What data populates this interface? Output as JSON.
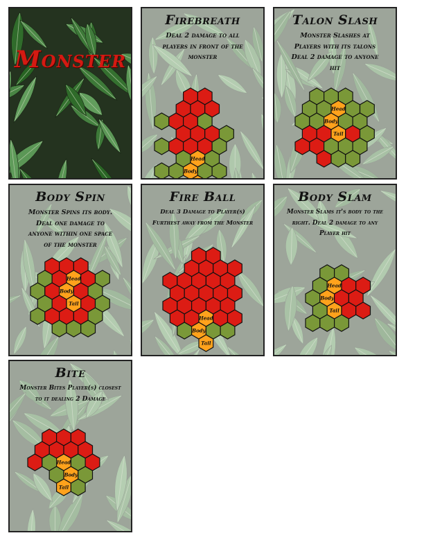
{
  "colors": {
    "danger": "#dc1c14",
    "safe": "#7a9838",
    "monster": "#ffa21c",
    "outline": "#111111",
    "cover_title": "#d41a12"
  },
  "cover": {
    "title": "Monster"
  },
  "cards": [
    {
      "title": "Firebreath",
      "desc": [
        "Deal 2 damage to all",
        "players in front of the",
        "monster"
      ],
      "grid": [
        {
          "row": 0,
          "q": [
            0,
            1
          ],
          "c": [
            "r",
            "r"
          ]
        },
        {
          "row": 1,
          "q": [
            -1,
            0,
            1
          ],
          "c": [
            "r",
            "r",
            "r"
          ]
        },
        {
          "row": 2,
          "q": [
            -1,
            0,
            1,
            2
          ],
          "c": [
            "g",
            "r",
            "r",
            "g"
          ]
        },
        {
          "row": 3,
          "q": [
            -1,
            0,
            1
          ],
          "c": [
            "g",
            "r",
            "g"
          ]
        },
        {
          "row": 4,
          "q": [
            -1,
            0,
            1,
            2
          ],
          "c": [
            "g",
            "r",
            "r",
            "g"
          ]
        },
        {
          "row": 5,
          "q": [
            -1,
            0,
            1
          ],
          "c": [
            "g",
            "H",
            "g"
          ]
        },
        {
          "row": 6,
          "q": [
            0,
            1
          ],
          "c": [
            "g",
            "g"
          ]
        },
        {
          "row": 7,
          "q": [
            0
          ],
          "c": [
            "B"
          ]
        },
        {
          "row": 9,
          "q": [
            0
          ],
          "c": [
            "T"
          ]
        }
      ]
    },
    {
      "title": "Talon Slash",
      "desc": [
        "Monster Slashes at",
        "Players with its talons",
        "Deal 2 damage to anyone",
        "hit"
      ],
      "grid": []
    },
    {
      "title": "Body Spin",
      "desc": [
        "Monster Spins its body.",
        "Deal one damage to",
        "anyone within one space",
        "of the monster"
      ],
      "grid": []
    },
    {
      "title": "Fire Ball",
      "desc": [
        "Deal 3 Damage to Player(s)",
        "Furthest away from the Monster"
      ],
      "grid": []
    },
    {
      "title": "Body Slam",
      "desc": [
        "Monster Slams it's body to the",
        "right. Deal 2 damage to any",
        "Player hit"
      ],
      "grid": []
    },
    {
      "title": "Bite",
      "desc": [
        "Monster Bites Player(s) closest",
        "to it dealing 2 Damage"
      ],
      "grid": []
    }
  ],
  "labels": {
    "head": "Head",
    "body": "Body",
    "tail": "Tail"
  },
  "boards": {
    "firebreath": [
      "..rr",
      ".rrr",
      "grrg",
      ".rrrg",
      "grrrg",
      ".gHg",
      "ggBgg",
      "..T"
    ],
    "talon": [
      ".ggg",
      "ggHgg",
      "ggBgg",
      "rrTrg",
      "rrggg",
      ".rgg"
    ],
    "spin": [
      ".rrr",
      "grHrg",
      "grBrg",
      "grTrg",
      "grrrg",
      ".ggg"
    ],
    "fireball": [
      "..rr",
      ".rrrr",
      "rrrrr",
      "rrrrr",
      "rrrrr",
      "rrHrr",
      ".gBgg",
      "..T"
    ],
    "slam": [
      ".gg",
      "gHrr",
      "gBrr",
      "gTrr",
      "ggg"
    ],
    "bite": [
      ".rrr",
      "rrrr",
      "rgHgr",
      ".gBg",
      "..Tg"
    ]
  }
}
